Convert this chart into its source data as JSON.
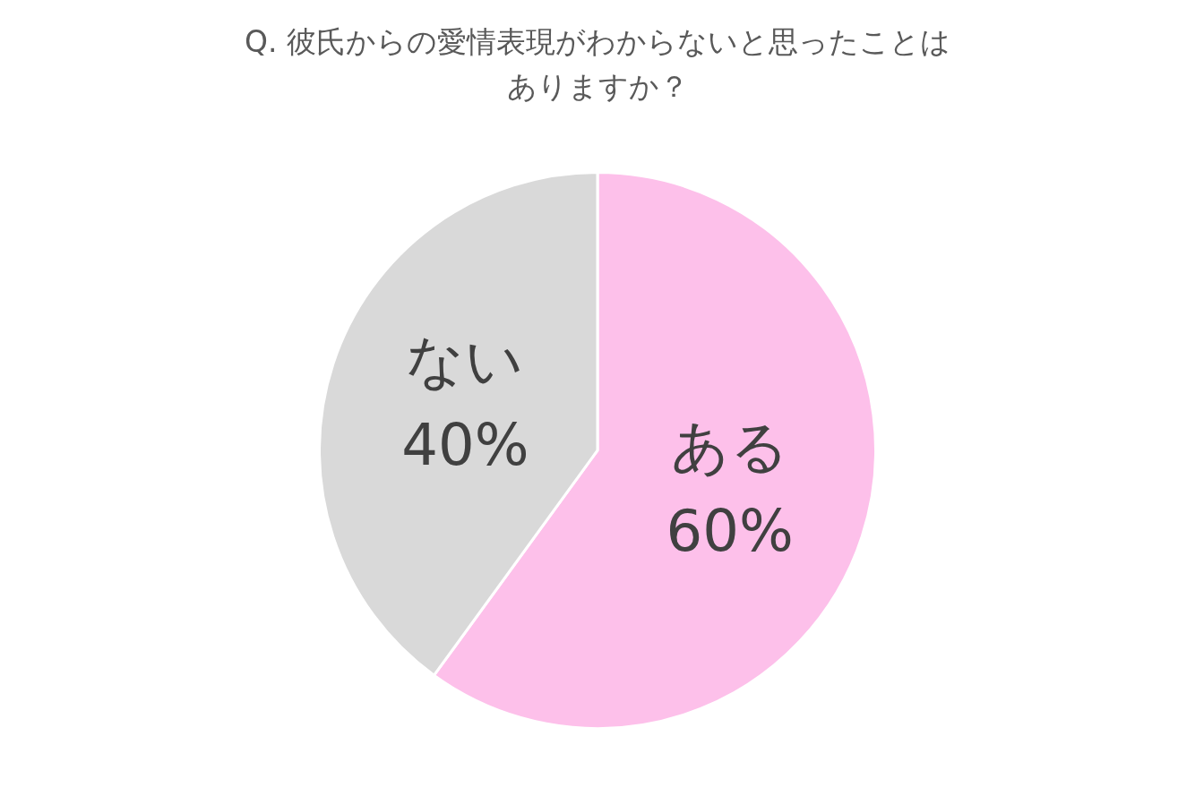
{
  "chart_data": {
    "type": "pie",
    "title": "Q. 彼氏からの愛情表現がわからないと思ったことはありますか？",
    "categories": [
      "ある",
      "ない"
    ],
    "values": [
      60,
      40
    ],
    "colors": [
      "#fdc0ea",
      "#d9d9d9"
    ],
    "value_labels": [
      "60%",
      "40%"
    ]
  }
}
